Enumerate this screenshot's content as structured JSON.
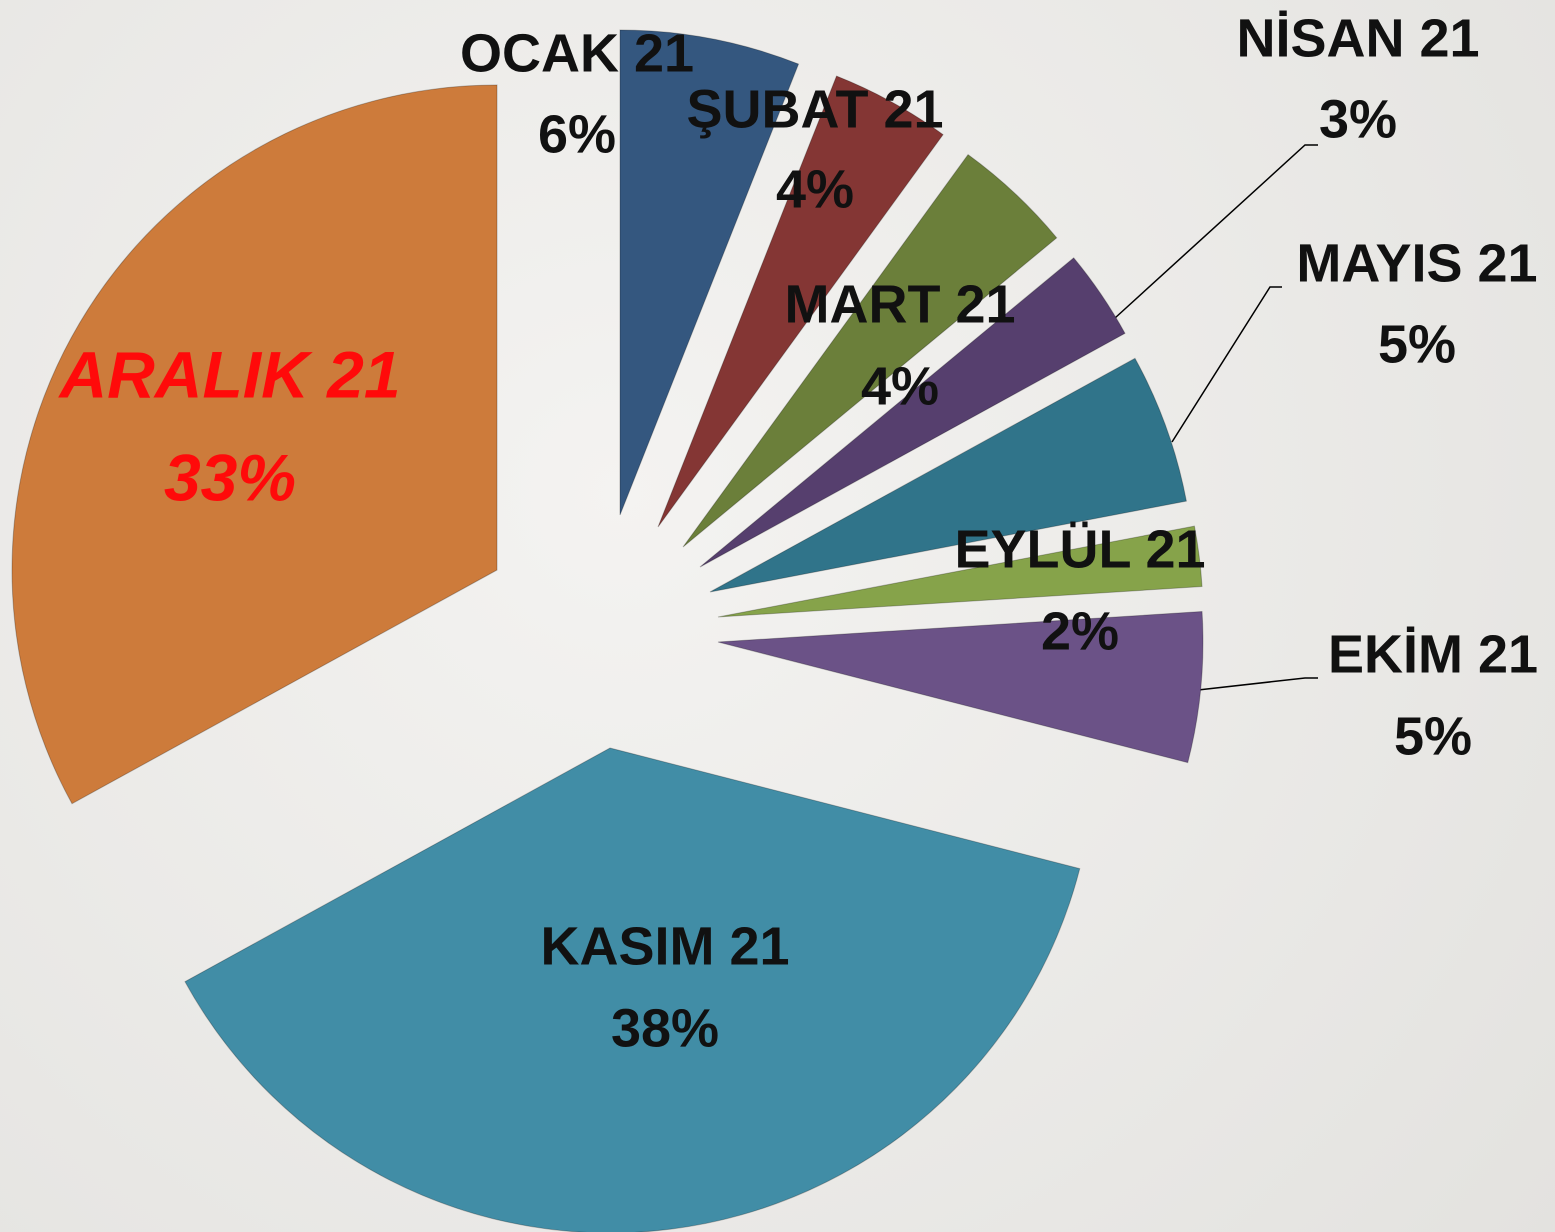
{
  "chart_data": {
    "type": "pie",
    "categories": [
      "OCAK 21",
      "ŞUBAT 21",
      "MART 21",
      "NİSAN 21",
      "MAYIS 21",
      "EYLÜL 21",
      "EKİM 21",
      "KASIM 21",
      "ARALIK 21"
    ],
    "values": [
      6,
      4,
      4,
      3,
      5,
      2,
      5,
      38,
      33
    ],
    "value_labels": [
      "6%",
      "4%",
      "4%",
      "3%",
      "5%",
      "2%",
      "5%",
      "38%",
      "33%"
    ],
    "colors": [
      "#34577f",
      "#843634",
      "#6b7f3a",
      "#563f6e",
      "#30748a",
      "#86a34a",
      "#6b5287",
      "#418da6",
      "#cd7b3b"
    ]
  }
}
